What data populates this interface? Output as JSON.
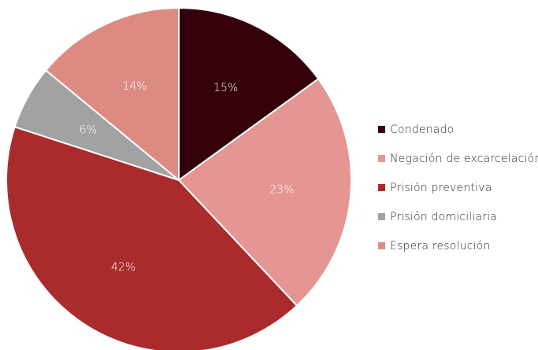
{
  "chart_data": {
    "type": "pie",
    "title": "",
    "slices": [
      {
        "label": "Condenado",
        "value": 15,
        "display": "15%",
        "color": "#340009"
      },
      {
        "label": "Negación de excarcelación",
        "value": 23,
        "display": "23%",
        "color": "#e59693"
      },
      {
        "label": "Prisión preventiva",
        "value": 42,
        "display": "42%",
        "color": "#aa2b2c"
      },
      {
        "label": "Prisión domiciliaria",
        "value": 6,
        "display": "6%",
        "color": "#a2a2a2"
      },
      {
        "label": "Espera resolución",
        "value": 14,
        "display": "14%",
        "color": "#dd8b82"
      }
    ],
    "legend_position": "right",
    "start_angle": "top",
    "direction": "clockwise"
  }
}
